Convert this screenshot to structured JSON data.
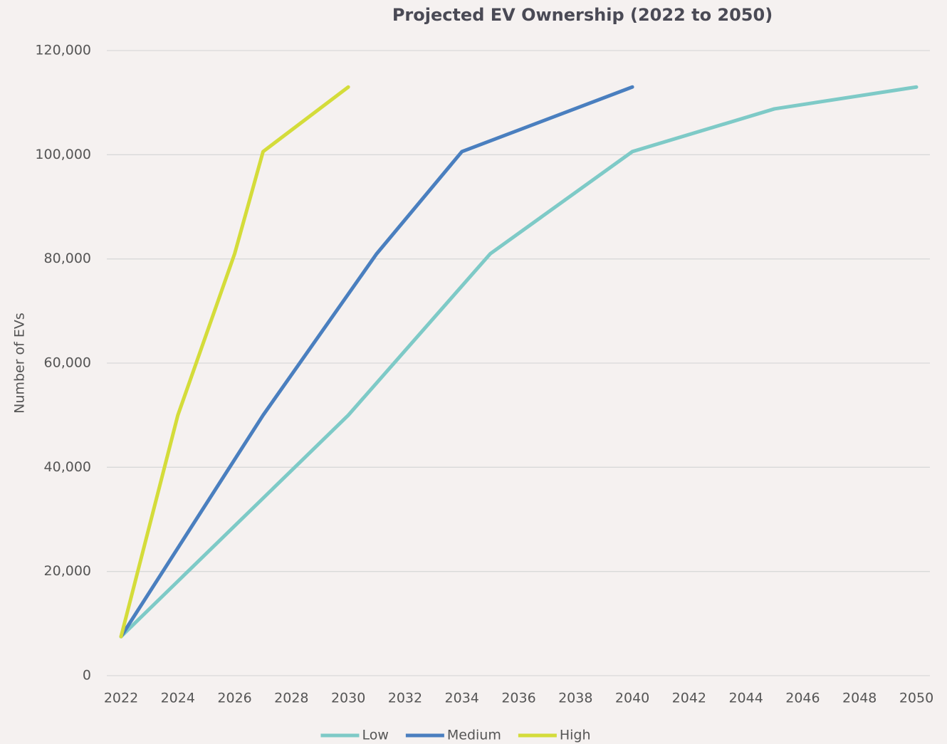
{
  "chart_data": {
    "type": "line",
    "title": "Projected EV Ownership (2022 to 2050)",
    "y_label": "Number of EVs",
    "series": [
      {
        "name": "Low",
        "color": "#7ecac7",
        "x": [
          2022,
          2030,
          2035,
          2040,
          2045,
          2050
        ],
        "values": [
          7500,
          50000,
          81000,
          100600,
          108800,
          113000
        ]
      },
      {
        "name": "Medium",
        "color": "#4a7fbf",
        "x": [
          2022,
          2027,
          2031,
          2034,
          2040
        ],
        "values": [
          7500,
          50000,
          81000,
          100600,
          113000
        ]
      },
      {
        "name": "High",
        "color": "#d4dc3a",
        "x": [
          2022,
          2024,
          2026,
          2027,
          2030
        ],
        "values": [
          7500,
          50000,
          81000,
          100600,
          113000
        ]
      }
    ],
    "xlim": [
      2022,
      2050
    ],
    "xticks": [
      2022,
      2024,
      2026,
      2028,
      2030,
      2032,
      2034,
      2036,
      2038,
      2040,
      2042,
      2044,
      2046,
      2048,
      2050
    ],
    "ylim": [
      0,
      120000
    ],
    "yticks": [
      0,
      {
        "value": 20000,
        "label": "20,000"
      },
      {
        "value": 40000,
        "label": "40,000"
      },
      {
        "value": 60000,
        "label": "60,000"
      },
      {
        "value": 80000,
        "label": "80,000"
      },
      {
        "value": 100000,
        "label": "100,000"
      },
      {
        "value": 120000,
        "label": "120,000"
      }
    ],
    "grid": true,
    "legend": "bottom"
  }
}
